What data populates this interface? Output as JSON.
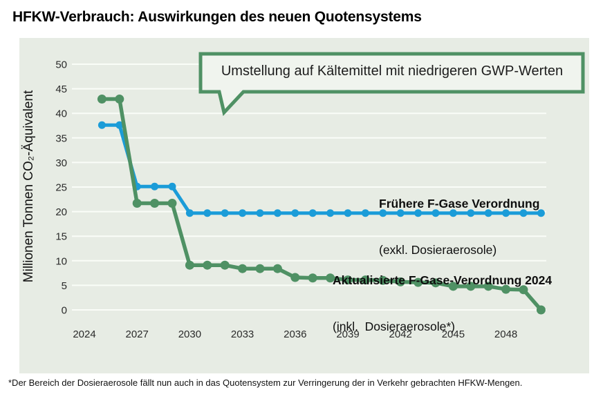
{
  "title": "HFKW-Verbrauch: Auswirkungen des neuen Quotensystems",
  "callout": {
    "text": "Umstellung auf Kältemittel mit niedrigeren GWP-Werten"
  },
  "y_axis": {
    "title": "Millionen Tonnen CO₂-Äquivalent"
  },
  "series_labels": {
    "former": {
      "line1": "Frühere F-Gase Verordnung",
      "line2": "(exkl. Dosieraerosole)"
    },
    "updated": {
      "line1": "Aktualisierte F-Gase-Verordnung 2024",
      "line2": "(inkl.  Dosieraerosole*)"
    }
  },
  "footnote": "*Der Bereich der Dosieraerosole fällt nun auch in das Quotensystem zur Verringerung der in Verkehr gebrachten HFKW-Mengen.",
  "colors": {
    "blue_series": "#1b9cd8",
    "green_series": "#4f9164",
    "panel_background": "#e7ece4",
    "callout_border": "#4f9164",
    "callout_fill": "#f0f4ee",
    "gridline": "#fafdf8"
  },
  "chart_data": {
    "type": "line",
    "title": "HFKW-Verbrauch: Auswirkungen des neuen Quotensystems",
    "xlabel": "",
    "ylabel": "Millionen Tonnen CO₂-Äquivalent",
    "ylim": [
      0,
      50
    ],
    "y_tick_step": 5,
    "grid": true,
    "legend_position": "inline-labels",
    "annotation": "Umstellung auf Kältemittel mit niedrigeren GWP-Werten",
    "x": [
      2025,
      2026,
      2027,
      2028,
      2029,
      2030,
      2031,
      2032,
      2033,
      2034,
      2035,
      2036,
      2037,
      2038,
      2039,
      2040,
      2041,
      2042,
      2043,
      2044,
      2045,
      2046,
      2047,
      2048,
      2049,
      2050
    ],
    "x_tick_labels": [
      2024,
      2027,
      2030,
      2033,
      2036,
      2039,
      2042,
      2045,
      2048
    ],
    "series": [
      {
        "name": "Frühere F-Gase Verordnung (exkl. Dosieraerosole)",
        "color": "#1b9cd8",
        "line_width": 5,
        "marker_radius": 5.5,
        "values": [
          37.6,
          37.6,
          25.1,
          25.1,
          25.1,
          19.7,
          19.7,
          19.7,
          19.7,
          19.7,
          19.7,
          19.7,
          19.7,
          19.7,
          19.7,
          19.7,
          19.7,
          19.7,
          19.7,
          19.7,
          19.7,
          19.7,
          19.7,
          19.7,
          19.7,
          19.7
        ]
      },
      {
        "name": "Aktualisierte F-Gase-Verordnung 2024 (inkl. Dosieraerosole*)",
        "color": "#4f9164",
        "line_width": 5.5,
        "marker_radius": 6.5,
        "values": [
          42.9,
          42.9,
          21.7,
          21.7,
          21.7,
          9.1,
          9.1,
          9.1,
          8.4,
          8.4,
          8.4,
          6.6,
          6.5,
          6.5,
          6.1,
          6.1,
          6.0,
          5.7,
          5.6,
          5.5,
          4.8,
          4.8,
          4.8,
          4.2,
          4.1,
          0
        ]
      }
    ]
  }
}
